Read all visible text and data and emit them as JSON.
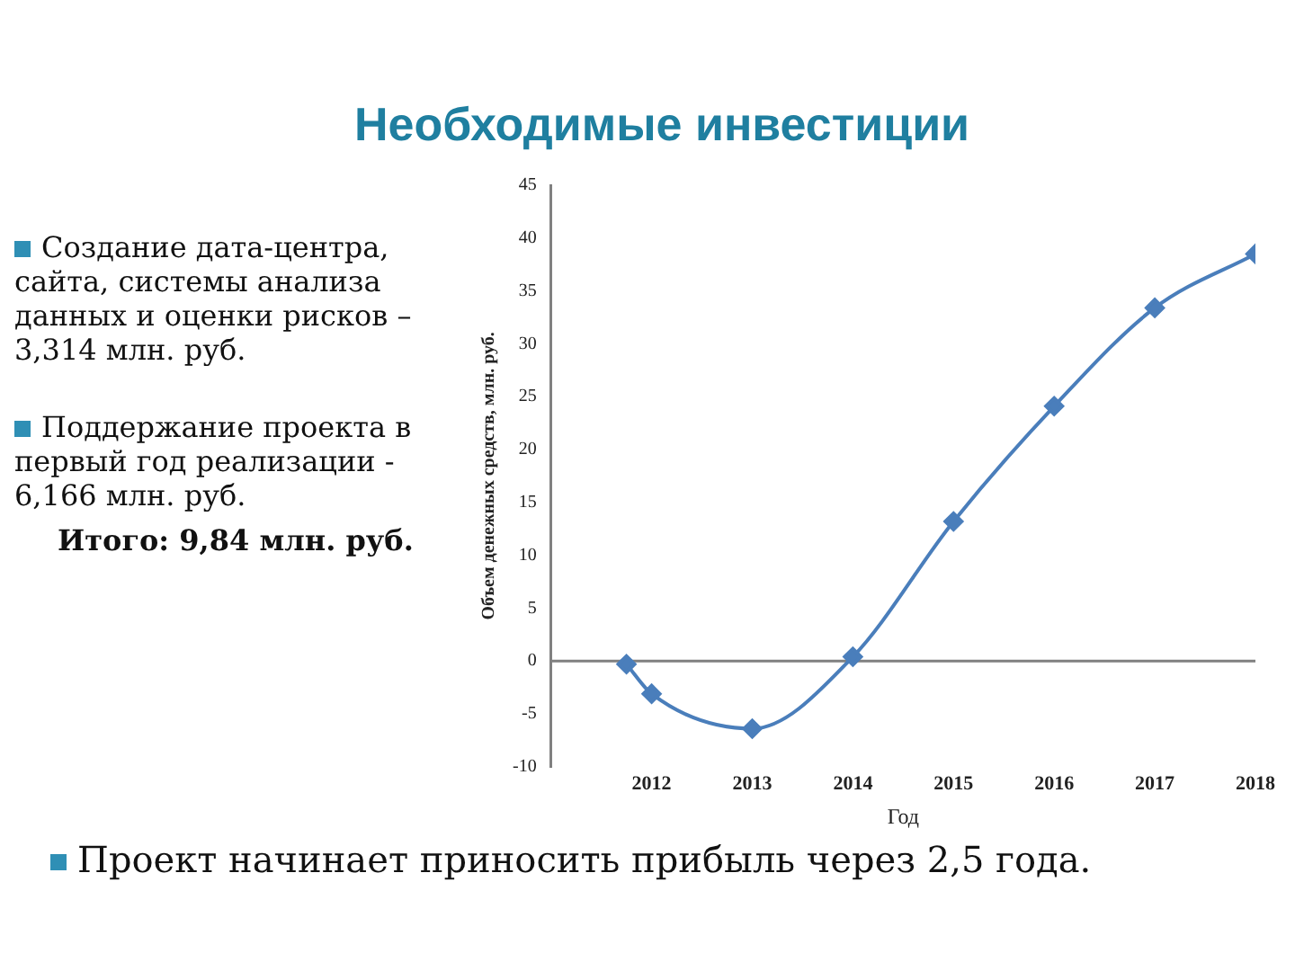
{
  "chart_data": {
    "type": "line",
    "title": "Необходимые инвестиции",
    "xlabel": "Год",
    "ylabel": "Объем денежных средств, млн. руб.",
    "annotations": [
      "Создание дата-центра, сайта, системы анализа данных и оценки рисков – 3,314  млн. руб.",
      "Поддержание проекта в первый год реализации - 6,166 млн. руб.",
      "Итого: 9,84 млн. руб.",
      "Проект начинает приносить прибыль через 2,5 года."
    ],
    "x": [
      2011.75,
      2012,
      2013,
      2014,
      2015,
      2016,
      2017,
      2018
    ],
    "series": [
      {
        "color": "#4a7ebb",
        "values": [
          -0.3,
          -3.1,
          -6.4,
          0.4,
          13.2,
          24.1,
          33.4,
          38.5
        ]
      }
    ],
    "xlim": [
      2011,
      2018
    ],
    "xticks": [
      2012,
      2013,
      2014,
      2015,
      2016,
      2017,
      2018
    ],
    "ylim": [
      -10,
      45
    ],
    "yticks": [
      -10,
      -5,
      0,
      5,
      10,
      15,
      20,
      25,
      30,
      35,
      40,
      45
    ],
    "ref_lines": [
      {
        "axis": "y",
        "value": 0,
        "color": "#808080"
      }
    ],
    "grid": false,
    "legend": false,
    "marker": "diamond",
    "line_style": "solid"
  }
}
